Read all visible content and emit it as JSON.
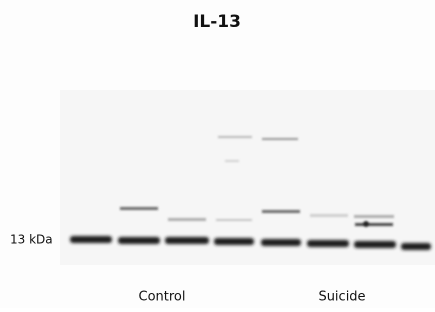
{
  "title": "IL-13",
  "marker_label": "13 kDa",
  "groups": [
    "Control",
    "Suicide"
  ]
}
